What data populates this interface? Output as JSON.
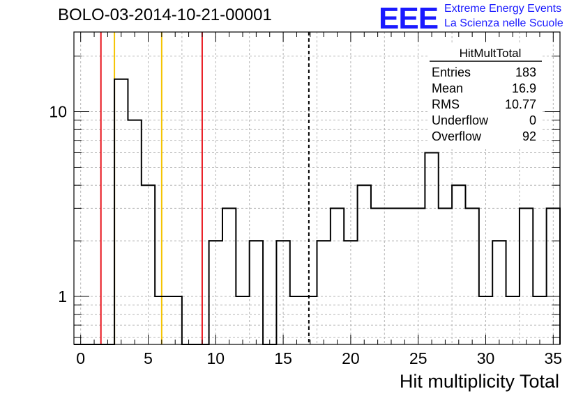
{
  "title": "BOLO-03-2014-10-21-00001",
  "logo": {
    "mark": "EEE",
    "line1": "Extreme Energy Events",
    "line2": "La Scienza nelle Scuole"
  },
  "stats": {
    "name": "HitMultTotal",
    "rows": [
      {
        "label": "Entries",
        "value": "183"
      },
      {
        "label": "Mean",
        "value": "16.9"
      },
      {
        "label": "RMS",
        "value": "10.77"
      },
      {
        "label": "Underflow",
        "value": "0"
      },
      {
        "label": "Overflow",
        "value": "92"
      }
    ]
  },
  "chart_data": {
    "type": "histogram",
    "title": "BOLO-03-2014-10-21-00001",
    "xlabel": "Hit multiplicity Total",
    "ylabel": "",
    "xlim": [
      -0.5,
      35.5
    ],
    "ylim": [
      0.55,
      27
    ],
    "yscale": "log",
    "grid": true,
    "bin_width": 1,
    "bins_low_edges": [
      -0.5,
      0.5,
      1.5,
      2.5,
      3.5,
      4.5,
      5.5,
      6.5,
      7.5,
      8.5,
      9.5,
      10.5,
      11.5,
      12.5,
      13.5,
      14.5,
      15.5,
      16.5,
      17.5,
      18.5,
      19.5,
      20.5,
      21.5,
      22.5,
      23.5,
      24.5,
      25.5,
      26.5,
      27.5,
      28.5,
      29.5,
      30.5,
      31.5,
      32.5,
      33.5,
      34.5
    ],
    "counts": [
      0,
      0,
      0,
      15,
      9,
      4,
      1,
      1,
      0,
      0,
      2,
      3,
      1,
      2,
      0,
      2,
      1,
      1,
      2,
      3,
      2,
      4,
      3,
      3,
      3,
      3,
      6,
      3,
      4,
      3,
      1,
      2,
      1,
      3,
      1,
      3
    ],
    "x_ticks": [
      0,
      5,
      10,
      15,
      20,
      25,
      30,
      35
    ],
    "x_tick_labels": [
      "0",
      "5",
      "10",
      "15",
      "20",
      "25",
      "30",
      "35"
    ],
    "y_ticks": [
      1,
      10
    ],
    "y_tick_labels": [
      "1",
      "10"
    ],
    "vertical_lines": [
      {
        "x": 1.5,
        "color": "#e8141c",
        "style": "solid"
      },
      {
        "x": 2.5,
        "color": "#f5c400",
        "style": "solid"
      },
      {
        "x": 6.0,
        "color": "#f5c400",
        "style": "solid"
      },
      {
        "x": 9.0,
        "color": "#e8141c",
        "style": "solid"
      },
      {
        "x": 16.9,
        "color": "#000000",
        "style": "dashed"
      }
    ]
  }
}
